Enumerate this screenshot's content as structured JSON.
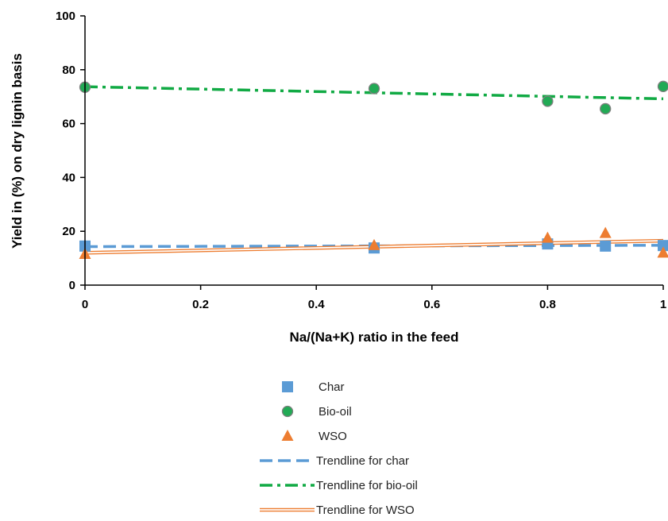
{
  "chart_data": {
    "type": "scatter",
    "title": "",
    "xlabel": "Na/(Na+K) ratio in the feed",
    "ylabel": "Yield in  (%) on dry lignin basis",
    "xlim": [
      0,
      1
    ],
    "ylim": [
      0,
      100
    ],
    "x_ticks": [
      "0",
      "0.2",
      "0.4",
      "0.6",
      "0.8",
      "1"
    ],
    "y_ticks": [
      "0",
      "20",
      "40",
      "60",
      "80",
      "100"
    ],
    "grid": false,
    "legend_position": "bottom",
    "series": [
      {
        "name": "Char",
        "marker": "square",
        "color": "#5b9bd5",
        "x": [
          0,
          0.5,
          0.8,
          0.9,
          1
        ],
        "y": [
          14.5,
          13.8,
          15.3,
          14.5,
          14.7
        ]
      },
      {
        "name": "Bio-oil",
        "marker": "circle",
        "color": "#22aa55",
        "x": [
          0,
          0.5,
          0.8,
          0.9,
          1
        ],
        "y": [
          73.5,
          73.0,
          68.3,
          65.5,
          73.8
        ]
      },
      {
        "name": "WSO",
        "marker": "triangle",
        "color": "#ed7d31",
        "x": [
          0,
          0.5,
          0.8,
          0.9,
          1
        ],
        "y": [
          11.5,
          14.8,
          17.5,
          19.3,
          12.0
        ]
      }
    ],
    "trendlines": [
      {
        "name": "Trendline for char",
        "style": "dashed",
        "color": "#5b9bd5",
        "x": [
          0,
          1
        ],
        "y": [
          14.3,
          14.8
        ]
      },
      {
        "name": "Trendline for bio-oil",
        "style": "dash-dot",
        "color": "#11aa44",
        "x": [
          0,
          1
        ],
        "y": [
          73.7,
          69.2
        ]
      },
      {
        "name": "Trendline for WSO",
        "style": "double",
        "color": "#ed7d31",
        "x": [
          0,
          1
        ],
        "y": [
          12.0,
          16.5
        ]
      }
    ]
  }
}
